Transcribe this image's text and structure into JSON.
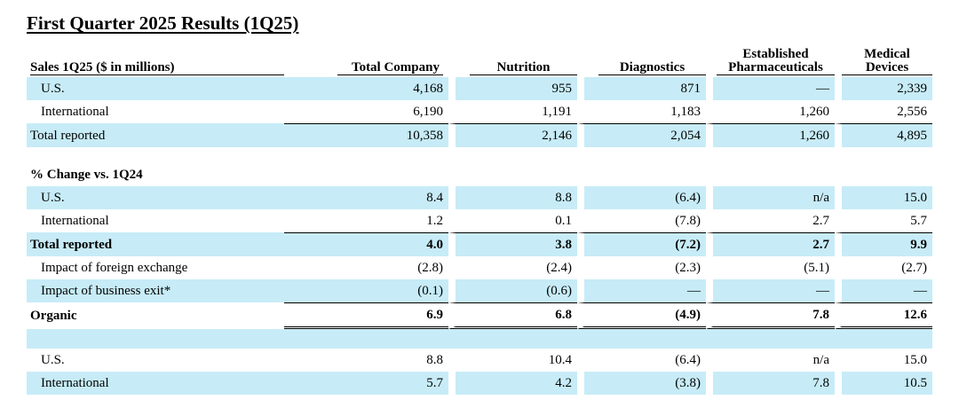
{
  "title": "First Quarter 2025 Results (1Q25)",
  "header": {
    "row_label": "Sales 1Q25 ($ in millions)",
    "columns": [
      "Total Company",
      "Nutrition",
      "Diagnostics",
      "Established Pharmaceuticals",
      "Medical Devices"
    ],
    "columns_line1": [
      "Total Company",
      "Nutrition",
      "Diagnostics",
      "Established",
      "Medical Devices"
    ],
    "columns_line2": [
      "",
      "",
      "",
      "Pharmaceuticals",
      ""
    ]
  },
  "sales": [
    {
      "label": "U.S.",
      "values": [
        "4,168",
        "955",
        "871",
        "—",
        "2,339"
      ]
    },
    {
      "label": "International",
      "values": [
        "6,190",
        "1,191",
        "1,183",
        "1,260",
        "2,556"
      ]
    },
    {
      "label": "Total reported",
      "values": [
        "10,358",
        "2,146",
        "2,054",
        "1,260",
        "4,895"
      ]
    }
  ],
  "change_section": {
    "label": "% Change vs. 1Q24",
    "rows": [
      {
        "label": "U.S.",
        "values": [
          "8.4",
          "8.8",
          "(6.4)",
          "n/a",
          "15.0"
        ]
      },
      {
        "label": "International",
        "values": [
          "1.2",
          "0.1",
          "(7.8)",
          "2.7",
          "5.7"
        ]
      },
      {
        "label": "Total reported",
        "values": [
          "4.0",
          "3.8",
          "(7.2)",
          "2.7",
          "9.9"
        ]
      },
      {
        "label": "Impact of foreign exchange",
        "values": [
          "(2.8)",
          "(2.4)",
          "(2.3)",
          "(5.1)",
          "(2.7)"
        ]
      },
      {
        "label": "Impact of business exit*",
        "values": [
          "(0.1)",
          "(0.6)",
          "—",
          "—",
          "—"
        ]
      },
      {
        "label": "Organic",
        "values": [
          "6.9",
          "6.8",
          "(4.9)",
          "7.8",
          "12.6"
        ]
      }
    ]
  },
  "organic_detail": [
    {
      "label": "U.S.",
      "values": [
        "8.8",
        "10.4",
        "(6.4)",
        "n/a",
        "15.0"
      ]
    },
    {
      "label": "International",
      "values": [
        "5.7",
        "4.2",
        "(3.8)",
        "7.8",
        "10.5"
      ]
    }
  ]
}
